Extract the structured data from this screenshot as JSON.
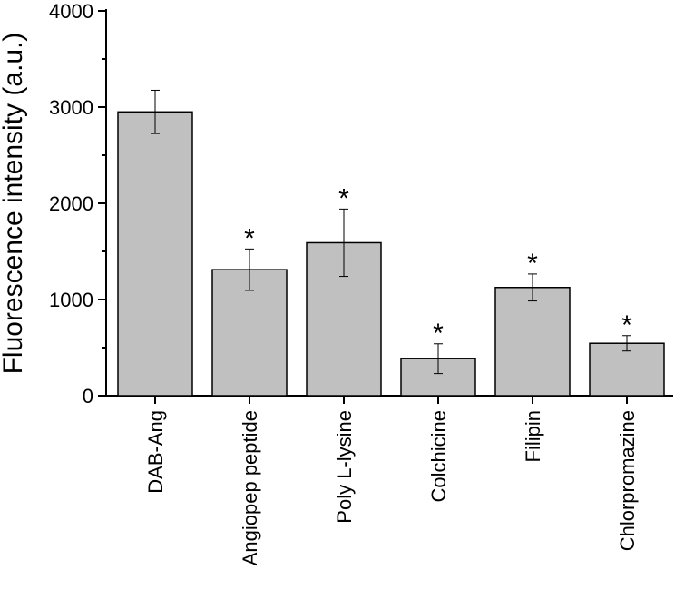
{
  "chart_data": {
    "type": "bar",
    "title": "",
    "xlabel": "",
    "ylabel": "Fluorescence intensity (a.u.)",
    "ylim": [
      0,
      4000
    ],
    "yticks": [
      0,
      1000,
      2000,
      3000,
      4000
    ],
    "ytick_labels": [
      "0",
      "1000",
      "2000",
      "3000",
      "4000"
    ],
    "categories": [
      "DAB-Ang",
      "Angiopep peptide",
      "Poly L-lysine",
      "Colchicine",
      "Filipin",
      "Chlorpromazine"
    ],
    "values": [
      2950,
      1310,
      1590,
      385,
      1125,
      545
    ],
    "errors": [
      225,
      215,
      350,
      155,
      140,
      80
    ],
    "significance": [
      "",
      "*",
      "*",
      "*",
      "*",
      "*"
    ],
    "bar_color": "#c0c0c0",
    "grid": false,
    "legend": "none"
  }
}
